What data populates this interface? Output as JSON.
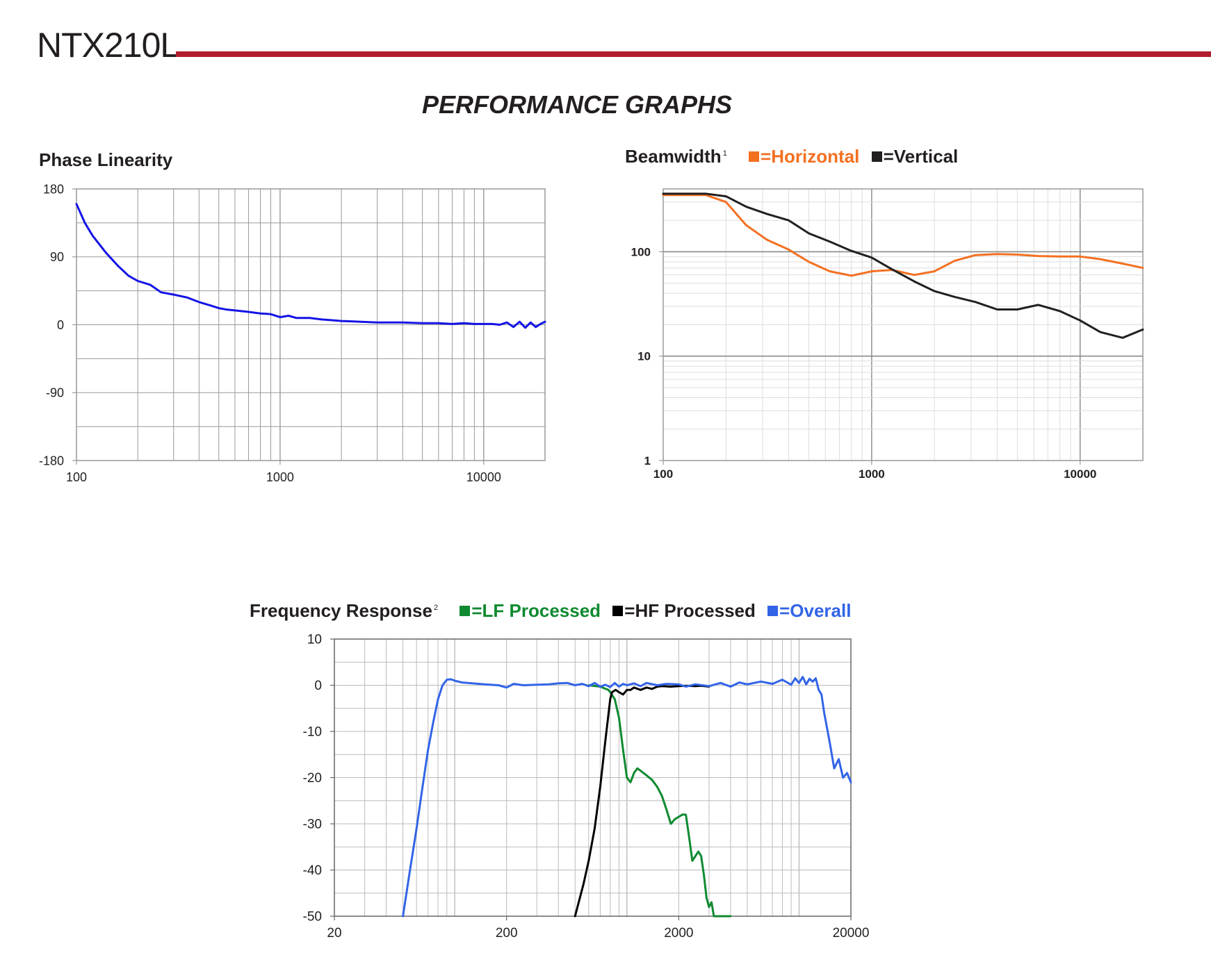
{
  "header": {
    "model": "NTX210L",
    "heading": "PERFORMANCE GRAPHS",
    "rule_color": "#b11e2f"
  },
  "chart_data": [
    {
      "id": "phase",
      "type": "line",
      "title": "Phase Linearity",
      "xscale": "log",
      "xlim": [
        100,
        20000
      ],
      "ylim": [
        -180,
        180
      ],
      "xticks": [
        100,
        1000,
        10000
      ],
      "xtick_labels": [
        "100",
        "1000",
        "10000"
      ],
      "yticks": [
        180,
        90,
        0,
        -90,
        -180
      ],
      "ytick_labels": [
        "180",
        "90",
        "0",
        "-90",
        "-180"
      ],
      "grid": true,
      "series": [
        {
          "color": "#1414e6",
          "x": [
            100,
            110,
            120,
            140,
            160,
            180,
            200,
            230,
            260,
            300,
            350,
            400,
            450,
            500,
            550,
            600,
            700,
            800,
            900,
            1000,
            1100,
            1200,
            1400,
            1600,
            1800,
            2000,
            2500,
            3000,
            3500,
            4000,
            5000,
            6000,
            7000,
            8000,
            9000,
            10000,
            11000,
            12000,
            13000,
            14000,
            15000,
            16000,
            17000,
            18000,
            19000,
            20000
          ],
          "y": [
            160,
            135,
            118,
            95,
            78,
            65,
            58,
            53,
            43,
            40,
            36,
            30,
            26,
            22,
            20,
            19,
            17,
            15,
            14,
            10,
            12,
            9,
            9,
            7,
            6,
            5,
            4,
            3,
            3,
            3,
            2,
            2,
            1,
            2,
            1,
            1,
            1,
            0,
            3,
            -3,
            4,
            -4,
            3,
            -3,
            1,
            4
          ]
        }
      ]
    },
    {
      "id": "beamwidth",
      "type": "line",
      "title": "Beamwidth",
      "title_sup": "1",
      "xscale": "log",
      "yscale": "log",
      "xlim": [
        100,
        20000
      ],
      "ylim": [
        1,
        400
      ],
      "xticks": [
        100,
        1000,
        10000
      ],
      "xtick_labels": [
        "100",
        "1000",
        "10000"
      ],
      "yticks": [
        100,
        10,
        1
      ],
      "ytick_labels": [
        "100",
        "10",
        "1"
      ],
      "grid": true,
      "legend": "top",
      "series": [
        {
          "name": "=Horizontal",
          "color": "#f37021",
          "x": [
            100,
            160,
            200,
            250,
            315,
            400,
            500,
            630,
            800,
            1000,
            1250,
            1600,
            2000,
            2500,
            3150,
            4000,
            5000,
            6300,
            8000,
            10000,
            12500,
            16000,
            20000
          ],
          "y": [
            350,
            350,
            300,
            180,
            130,
            105,
            80,
            65,
            59,
            65,
            67,
            60,
            65,
            82,
            93,
            95,
            94,
            91,
            90,
            90,
            85,
            77,
            70
          ]
        },
        {
          "name": "=Vertical",
          "color": "#231f20",
          "x": [
            100,
            160,
            200,
            250,
            315,
            400,
            500,
            630,
            800,
            1000,
            1250,
            1600,
            2000,
            2500,
            3150,
            4000,
            5000,
            6300,
            8000,
            10000,
            12500,
            16000,
            20000
          ],
          "y": [
            360,
            360,
            340,
            270,
            230,
            200,
            150,
            125,
            102,
            88,
            68,
            52,
            42,
            37,
            33,
            28,
            28,
            31,
            27,
            22,
            17,
            15,
            18
          ]
        }
      ]
    },
    {
      "id": "frequency",
      "type": "line",
      "title": "Frequency Response",
      "title_sup": "2",
      "xscale": "log",
      "xlim": [
        20,
        20000
      ],
      "ylim": [
        -50,
        10
      ],
      "xticks": [
        20,
        200,
        2000,
        20000
      ],
      "xtick_labels": [
        "20",
        "200",
        "2000",
        "20000"
      ],
      "yticks": [
        10,
        0,
        -10,
        -20,
        -30,
        -40,
        -50
      ],
      "ytick_labels": [
        "10",
        "0",
        "-10",
        "-20",
        "-30",
        "-40",
        "-50"
      ],
      "grid": true,
      "legend": "top",
      "series": [
        {
          "name": "=LF Processed",
          "color": "#0f8a30",
          "x": [
            600,
            700,
            780,
            800,
            850,
            900,
            950,
            1000,
            1050,
            1100,
            1150,
            1200,
            1300,
            1400,
            1500,
            1600,
            1700,
            1800,
            1900,
            2000,
            2100,
            2200,
            2300,
            2400,
            2500,
            2600,
            2700,
            2800,
            2900,
            3000,
            3100,
            3200,
            3300,
            3400,
            3500,
            3600,
            3700,
            3800,
            3900,
            4000
          ],
          "y": [
            0,
            -0.3,
            -1,
            -1.5,
            -3,
            -7,
            -14,
            -20,
            -21,
            -19,
            -18,
            -18.5,
            -19.5,
            -20.5,
            -22,
            -24,
            -27,
            -30,
            -29,
            -28.5,
            -28,
            -28,
            -33,
            -38,
            -37,
            -36,
            -37,
            -41,
            -46,
            -48,
            -47,
            -50,
            -50,
            -50,
            -50,
            -50,
            -50,
            -50,
            -50,
            -50
          ]
        },
        {
          "name": "=HF Processed",
          "color": "#000000",
          "x": [
            500,
            560,
            600,
            650,
            700,
            750,
            800,
            820,
            860,
            900,
            950,
            1000,
            1050,
            1100,
            1200,
            1300,
            1400,
            1500,
            1600,
            1800,
            2000,
            2200,
            2500,
            2700,
            3000
          ],
          "y": [
            -50,
            -43,
            -38,
            -31,
            -22,
            -12,
            -3,
            -1.5,
            -1,
            -1.5,
            -2,
            -1,
            -1,
            -0.5,
            -1,
            -0.5,
            -0.8,
            -0.3,
            -0.2,
            -0.3,
            -0.2,
            -0.1,
            -0.2,
            -0.1,
            -0.3
          ]
        },
        {
          "name": "=Overall",
          "color": "#3264e8",
          "x": [
            50,
            55,
            60,
            65,
            70,
            75,
            80,
            85,
            90,
            95,
            100,
            110,
            120,
            150,
            180,
            200,
            220,
            250,
            300,
            350,
            400,
            450,
            500,
            550,
            600,
            650,
            700,
            750,
            800,
            850,
            900,
            950,
            1000,
            1100,
            1200,
            1300,
            1500,
            1700,
            2000,
            2200,
            2500,
            3000,
            3500,
            4000,
            4500,
            5000,
            6000,
            7000,
            8000,
            9000,
            9500,
            10000,
            10500,
            11000,
            11500,
            12000,
            12500,
            13000,
            13500,
            14000,
            15000,
            16000,
            17000,
            18000,
            19000,
            20000
          ],
          "y": [
            -50,
            -40,
            -31,
            -22,
            -14,
            -8,
            -3,
            0,
            1.2,
            1.3,
            1,
            0.6,
            0.5,
            0.2,
            0,
            -0.5,
            0.3,
            0,
            0.1,
            0.2,
            0.4,
            0.5,
            0,
            0.3,
            -0.2,
            0.5,
            -0.3,
            0.1,
            -0.4,
            0.5,
            -0.3,
            0.3,
            0,
            0.4,
            -0.2,
            0.5,
            0,
            0.3,
            0.2,
            -0.3,
            0.2,
            -0.2,
            0.5,
            -0.3,
            0.6,
            0.2,
            0.8,
            0.3,
            1.2,
            0.1,
            1.5,
            0.5,
            1.8,
            0.2,
            1.4,
            0.8,
            1.5,
            -1,
            -2,
            -6,
            -12,
            -18,
            -16,
            -20,
            -19,
            -21
          ]
        }
      ]
    }
  ]
}
